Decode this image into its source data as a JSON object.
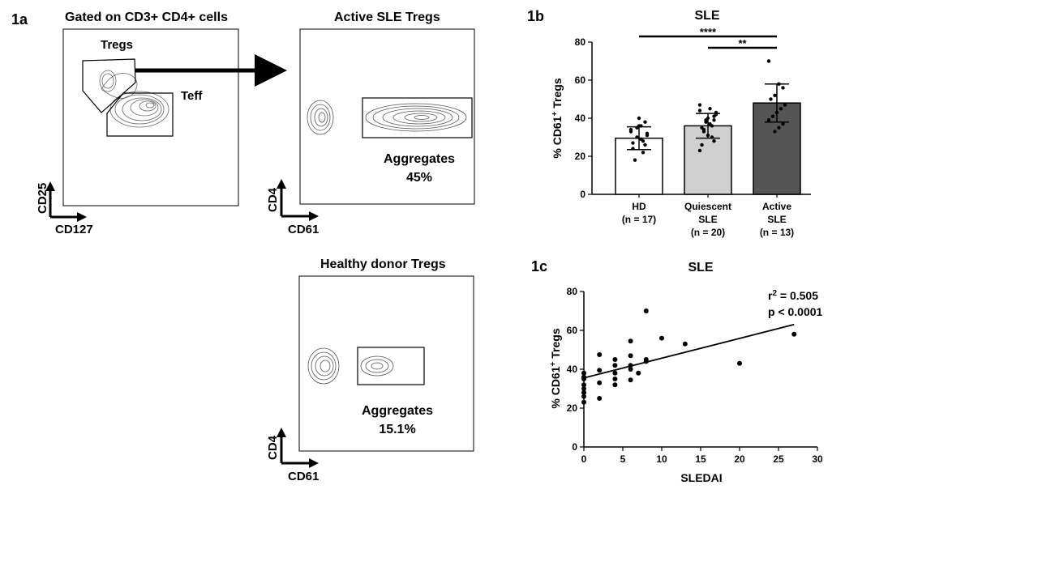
{
  "panel_1a": {
    "label": "1a",
    "gating": {
      "title": "Gated on CD3+ CD4+ cells",
      "gate_tregs": "Tregs",
      "gate_teff": "Teff",
      "y_axis": "CD25",
      "x_axis": "CD127"
    },
    "active_sle": {
      "title": "Active SLE Tregs",
      "gate_label": "Aggregates",
      "gate_value": "45%",
      "y_axis": "CD4",
      "x_axis": "CD61"
    },
    "healthy": {
      "title": "Healthy donor Tregs",
      "gate_label": "Aggregates",
      "gate_value": "15.1%",
      "y_axis": "CD4",
      "x_axis": "CD61"
    }
  },
  "chart_data": [
    {
      "panel": "1b",
      "type": "bar",
      "title": "SLE",
      "ylabel_main": "% CD61",
      "ylabel_sup": "+",
      "ylabel_tail": " Tregs",
      "ylim": [
        0,
        80
      ],
      "yticks": [
        0,
        20,
        40,
        60,
        80
      ],
      "categories": [
        {
          "lines": [
            "HD",
            "(n = 17)"
          ],
          "mean": 29.5,
          "sd": 6,
          "color": "#ffffff"
        },
        {
          "lines": [
            "Quiescent",
            "SLE",
            "(n = 20)"
          ],
          "mean": 36,
          "sd": 6.5,
          "color": "#d0d0d0"
        },
        {
          "lines": [
            "Active",
            "SLE",
            "(n = 13)"
          ],
          "mean": 48,
          "sd": 10,
          "color": "#555555"
        }
      ],
      "points": [
        [
          33,
          38,
          29,
          35,
          27,
          31,
          22,
          40,
          18,
          34,
          26,
          36,
          30,
          24,
          32,
          28,
          36
        ],
        [
          47,
          41,
          45,
          38,
          35,
          43,
          30,
          40,
          33,
          44,
          28,
          37,
          39,
          26,
          42,
          36,
          31,
          34,
          23,
          39
        ],
        [
          70,
          56,
          58,
          52,
          50,
          47,
          45,
          43,
          41,
          39,
          37,
          35,
          33
        ]
      ],
      "significance": [
        {
          "label": "****",
          "from": 0,
          "to": 2,
          "y": 83
        },
        {
          "label": "**",
          "from": 1,
          "to": 2,
          "y": 77
        }
      ]
    },
    {
      "panel": "1c",
      "type": "scatter",
      "title": "SLE",
      "xlabel": "SLEDAI",
      "ylabel_main": "% CD61",
      "ylabel_sup": "+",
      "ylabel_tail": " Tregs",
      "xlim": [
        0,
        30
      ],
      "ylim": [
        0,
        80
      ],
      "xticks": [
        0,
        5,
        10,
        15,
        20,
        25,
        30
      ],
      "yticks": [
        0,
        20,
        40,
        60,
        80
      ],
      "stats_r_main": "r",
      "stats_r_sup": "2",
      "stats_r_tail": " = 0.505",
      "stats_p": "p < 0.0001",
      "regression": {
        "x0": 0,
        "y0": 35.5,
        "x1": 27,
        "y1": 63
      },
      "points": [
        [
          0,
          38
        ],
        [
          0,
          36
        ],
        [
          0,
          35
        ],
        [
          0,
          32
        ],
        [
          0,
          30
        ],
        [
          0,
          28
        ],
        [
          0,
          26
        ],
        [
          0,
          23
        ],
        [
          2,
          47.5
        ],
        [
          2,
          39.5
        ],
        [
          2,
          33
        ],
        [
          2,
          25
        ],
        [
          4,
          45
        ],
        [
          4,
          42
        ],
        [
          4,
          38
        ],
        [
          4,
          35
        ],
        [
          4,
          32
        ],
        [
          6,
          54.5
        ],
        [
          6,
          47
        ],
        [
          6,
          42
        ],
        [
          6,
          40
        ],
        [
          6,
          34.5
        ],
        [
          7,
          38
        ],
        [
          8,
          70
        ],
        [
          8,
          45
        ],
        [
          8,
          44
        ],
        [
          10,
          56
        ],
        [
          13,
          53
        ],
        [
          20,
          43
        ],
        [
          27,
          58
        ]
      ]
    }
  ]
}
